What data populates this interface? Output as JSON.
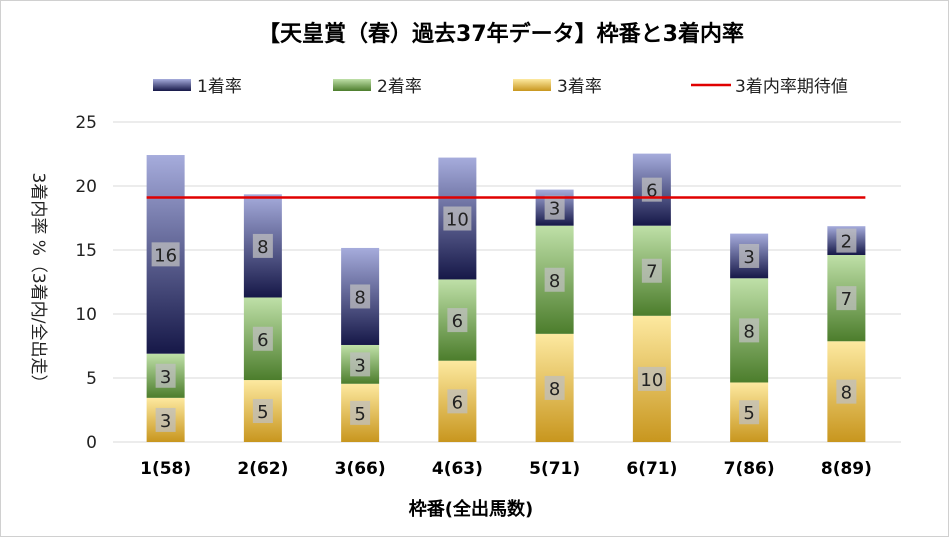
{
  "chart_data": {
    "type": "bar",
    "stacked": true,
    "title": "【天皇賞（春）過去37年データ】枠番と3着内率",
    "xlabel": "枠番(全出馬数)",
    "ylabel": "3着内率 %（3着内/全出走）",
    "ylim": [
      0,
      25
    ],
    "yticks": [
      0,
      5,
      10,
      15,
      20,
      25
    ],
    "grid": true,
    "legend_position": "top",
    "categories": [
      "1(58)",
      "2(62)",
      "3(66)",
      "4(63)",
      "5(71)",
      "6(71)",
      "7(86)",
      "8(89)"
    ],
    "series": [
      {
        "name": "3着率",
        "values": [
          3.45,
          4.84,
          4.55,
          6.35,
          8.45,
          9.86,
          4.65,
          7.87
        ],
        "labels": [
          "3",
          "5",
          "5",
          "6",
          "8",
          "10",
          "5",
          "8"
        ],
        "colors": [
          "#fde9a0",
          "#c8961e"
        ]
      },
      {
        "name": "2着率",
        "values": [
          3.45,
          6.45,
          3.03,
          6.35,
          8.45,
          7.04,
          8.14,
          6.74
        ],
        "labels": [
          "3",
          "6",
          "3",
          "6",
          "8",
          "7",
          "8",
          "7"
        ],
        "colors": [
          "#bfe0a8",
          "#4c7d2c"
        ]
      },
      {
        "name": "1着率",
        "values": [
          15.52,
          8.06,
          7.58,
          9.52,
          2.82,
          5.63,
          3.49,
          2.25
        ],
        "labels": [
          "16",
          "8",
          "8",
          "10",
          "3",
          "6",
          "3",
          "2"
        ],
        "colors": [
          "#a6acdc",
          "#161848"
        ]
      }
    ],
    "reference_line": {
      "name": "3着内率期待値",
      "value": 19.1,
      "color": "#e00000"
    }
  }
}
